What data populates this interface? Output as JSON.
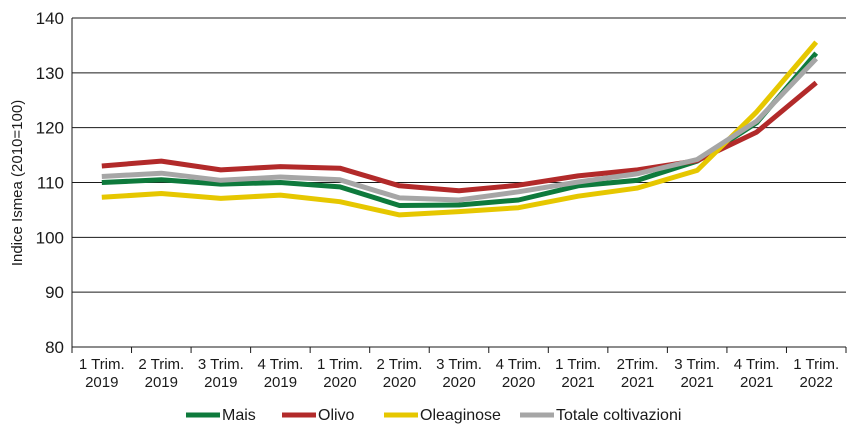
{
  "chart_data": {
    "type": "line",
    "title": "",
    "xlabel": "",
    "ylabel": "Indice Ismea (2010=100)",
    "ylim": [
      80,
      140
    ],
    "yticks": [
      80,
      90,
      100,
      110,
      120,
      130,
      140
    ],
    "grid": "horizontal",
    "legend_position": "bottom",
    "categories": [
      [
        "1 Trim.",
        "2019"
      ],
      [
        "2 Trim.",
        "2019"
      ],
      [
        "3 Trim.",
        "2019"
      ],
      [
        "4 Trim.",
        "2019"
      ],
      [
        "1 Trim.",
        "2020"
      ],
      [
        "2 Trim.",
        "2020"
      ],
      [
        "3 Trim.",
        "2020"
      ],
      [
        "4 Trim.",
        "2020"
      ],
      [
        "1 Trim.",
        "2021"
      ],
      [
        "2Trim.",
        "2021"
      ],
      [
        "3 Trim.",
        "2021"
      ],
      [
        "4 Trim.",
        "2021"
      ],
      [
        "1 Trim.",
        "2022"
      ]
    ],
    "series": [
      {
        "name": "Mais",
        "color": "#0e7a3c",
        "values": [
          110.0,
          110.5,
          109.7,
          110.0,
          109.2,
          105.8,
          105.9,
          106.8,
          109.4,
          110.4,
          113.9,
          120.9,
          133.6
        ]
      },
      {
        "name": "Olivo",
        "color": "#b22a2a",
        "values": [
          113.0,
          113.9,
          112.3,
          112.9,
          112.6,
          109.4,
          108.5,
          109.5,
          111.2,
          112.3,
          114.0,
          119.2,
          128.2
        ]
      },
      {
        "name": "Oleaginose",
        "color": "#e6c700",
        "values": [
          107.3,
          108.0,
          107.1,
          107.7,
          106.5,
          104.1,
          104.7,
          105.4,
          107.5,
          109.0,
          112.2,
          122.9,
          135.6
        ]
      },
      {
        "name": "Totale coltivazioni",
        "color": "#a6a6a6",
        "values": [
          111.1,
          111.7,
          110.4,
          111.0,
          110.5,
          107.2,
          106.8,
          108.3,
          110.1,
          111.6,
          114.2,
          121.2,
          132.6
        ]
      }
    ]
  }
}
